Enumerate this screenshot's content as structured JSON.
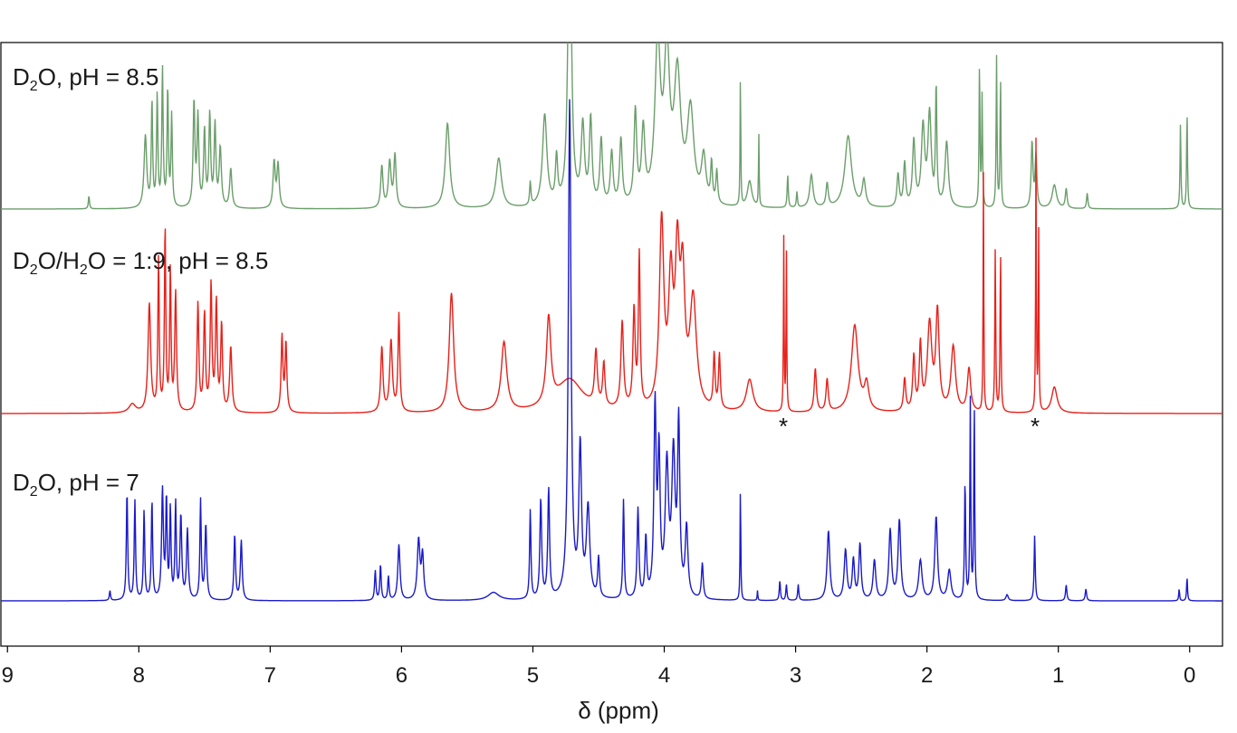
{
  "chart_data": {
    "type": "line",
    "title": "",
    "xlabel": "δ (ppm)",
    "ylabel": "",
    "x_reversed": true,
    "xlim": [
      9.05,
      -0.25
    ],
    "xticks": [
      9,
      8,
      7,
      6,
      5,
      4,
      3,
      2,
      1,
      0
    ],
    "grid": false,
    "series": [
      {
        "name": "D2O, pH = 8.5",
        "label_parts": [
          "D",
          "2",
          "O, pH = 8.5"
        ],
        "color": "#6b9e6b",
        "baseline": 0.0,
        "peaks": [
          [
            8.38,
            0.1,
            0.005
          ],
          [
            7.95,
            0.55,
            0.012
          ],
          [
            7.9,
            0.8,
            0.006
          ],
          [
            7.86,
            0.85,
            0.006
          ],
          [
            7.82,
            1.05,
            0.006
          ],
          [
            7.78,
            0.9,
            0.006
          ],
          [
            7.75,
            0.7,
            0.006
          ],
          [
            7.58,
            0.8,
            0.008
          ],
          [
            7.55,
            0.68,
            0.008
          ],
          [
            7.5,
            0.58,
            0.008
          ],
          [
            7.46,
            0.7,
            0.008
          ],
          [
            7.42,
            0.62,
            0.008
          ],
          [
            7.38,
            0.45,
            0.01
          ],
          [
            7.3,
            0.3,
            0.01
          ],
          [
            6.97,
            0.35,
            0.01
          ],
          [
            6.94,
            0.33,
            0.01
          ],
          [
            6.15,
            0.32,
            0.01
          ],
          [
            6.09,
            0.35,
            0.012
          ],
          [
            6.05,
            0.4,
            0.01
          ],
          [
            5.65,
            0.65,
            0.02
          ],
          [
            5.26,
            0.38,
            0.025
          ],
          [
            5.02,
            0.18,
            0.006
          ],
          [
            4.91,
            0.7,
            0.02
          ],
          [
            4.82,
            0.35,
            0.01
          ],
          [
            4.72,
            2.5,
            0.015
          ],
          [
            4.62,
            0.6,
            0.015
          ],
          [
            4.56,
            0.65,
            0.012
          ],
          [
            4.48,
            0.5,
            0.012
          ],
          [
            4.4,
            0.4,
            0.012
          ],
          [
            4.33,
            0.5,
            0.012
          ],
          [
            4.22,
            0.7,
            0.012
          ],
          [
            4.16,
            0.55,
            0.015
          ],
          [
            4.05,
            1.2,
            0.025
          ],
          [
            3.98,
            1.1,
            0.025
          ],
          [
            3.9,
            0.95,
            0.03
          ],
          [
            3.8,
            0.7,
            0.03
          ],
          [
            3.7,
            0.35,
            0.02
          ],
          [
            3.64,
            0.3,
            0.008
          ],
          [
            3.6,
            0.25,
            0.008
          ],
          [
            3.42,
            1.05,
            0.003
          ],
          [
            3.35,
            0.2,
            0.02
          ],
          [
            3.28,
            0.55,
            0.003
          ],
          [
            3.06,
            0.25,
            0.005
          ],
          [
            2.99,
            0.12,
            0.005
          ],
          [
            2.88,
            0.25,
            0.015
          ],
          [
            2.76,
            0.18,
            0.01
          ],
          [
            2.6,
            0.55,
            0.03
          ],
          [
            2.48,
            0.2,
            0.015
          ],
          [
            2.22,
            0.25,
            0.01
          ],
          [
            2.17,
            0.33,
            0.01
          ],
          [
            2.1,
            0.5,
            0.012
          ],
          [
            2.03,
            0.6,
            0.015
          ],
          [
            1.98,
            0.7,
            0.015
          ],
          [
            1.93,
            0.9,
            0.006
          ],
          [
            1.85,
            0.5,
            0.015
          ],
          [
            1.6,
            1.1,
            0.004
          ],
          [
            1.58,
            0.85,
            0.004
          ],
          [
            1.47,
            1.15,
            0.004
          ],
          [
            1.44,
            1.0,
            0.004
          ],
          [
            1.2,
            0.5,
            0.008
          ],
          [
            1.17,
            0.4,
            0.008
          ],
          [
            1.03,
            0.18,
            0.02
          ],
          [
            0.94,
            0.15,
            0.008
          ],
          [
            0.78,
            0.12,
            0.006
          ],
          [
            0.07,
            0.65,
            0.004
          ],
          [
            0.02,
            0.75,
            0.004
          ]
        ]
      },
      {
        "name": "D2O/H2O = 1:9, pH = 8.5",
        "label_parts": [
          "D",
          "2",
          "O/H",
          "2",
          "O = 1:9, pH = 8.5"
        ],
        "color": "#e8201a",
        "baseline": 0.0,
        "peaks": [
          [
            8.05,
            0.04,
            0.03
          ],
          [
            7.92,
            0.5,
            0.012
          ],
          [
            7.85,
            0.7,
            0.006
          ],
          [
            7.8,
            0.85,
            0.006
          ],
          [
            7.76,
            0.65,
            0.006
          ],
          [
            7.72,
            0.55,
            0.008
          ],
          [
            7.55,
            0.5,
            0.008
          ],
          [
            7.5,
            0.45,
            0.008
          ],
          [
            7.45,
            0.58,
            0.008
          ],
          [
            7.41,
            0.5,
            0.008
          ],
          [
            7.37,
            0.4,
            0.008
          ],
          [
            7.3,
            0.3,
            0.01
          ],
          [
            6.91,
            0.35,
            0.008
          ],
          [
            6.88,
            0.32,
            0.008
          ],
          [
            6.15,
            0.3,
            0.01
          ],
          [
            6.08,
            0.33,
            0.012
          ],
          [
            6.02,
            0.45,
            0.008
          ],
          [
            5.62,
            0.55,
            0.02
          ],
          [
            5.22,
            0.32,
            0.025
          ],
          [
            4.88,
            0.4,
            0.02
          ],
          [
            4.72,
            0.15,
            0.12
          ],
          [
            4.52,
            0.25,
            0.012
          ],
          [
            4.46,
            0.2,
            0.01
          ],
          [
            4.32,
            0.4,
            0.012
          ],
          [
            4.23,
            0.45,
            0.01
          ],
          [
            4.19,
            0.7,
            0.008
          ],
          [
            4.02,
            0.85,
            0.02
          ],
          [
            3.95,
            0.55,
            0.02
          ],
          [
            3.9,
            0.65,
            0.02
          ],
          [
            3.86,
            0.55,
            0.02
          ],
          [
            3.78,
            0.5,
            0.03
          ],
          [
            3.62,
            0.25,
            0.008
          ],
          [
            3.58,
            0.25,
            0.008
          ],
          [
            3.35,
            0.15,
            0.03
          ],
          [
            3.09,
            0.8,
            0.003
          ],
          [
            3.07,
            0.75,
            0.003
          ],
          [
            2.85,
            0.2,
            0.01
          ],
          [
            2.76,
            0.15,
            0.01
          ],
          [
            2.55,
            0.4,
            0.03
          ],
          [
            2.46,
            0.12,
            0.02
          ],
          [
            2.17,
            0.15,
            0.01
          ],
          [
            2.1,
            0.25,
            0.01
          ],
          [
            2.05,
            0.3,
            0.01
          ],
          [
            1.98,
            0.4,
            0.02
          ],
          [
            1.92,
            0.45,
            0.015
          ],
          [
            1.8,
            0.3,
            0.02
          ],
          [
            1.68,
            0.2,
            0.015
          ],
          [
            1.57,
            1.1,
            0.003
          ],
          [
            1.48,
            0.75,
            0.004
          ],
          [
            1.44,
            0.75,
            0.004
          ],
          [
            1.17,
            1.25,
            0.003
          ],
          [
            1.15,
            0.85,
            0.003
          ],
          [
            1.03,
            0.12,
            0.025
          ]
        ]
      },
      {
        "name": "D2O, pH = 7",
        "label_parts": [
          "D",
          "2",
          "O, pH = 7"
        ],
        "color": "#1a1acc",
        "baseline": 0.0,
        "peaks": [
          [
            8.22,
            0.05,
            0.005
          ],
          [
            8.09,
            0.55,
            0.006
          ],
          [
            8.03,
            0.5,
            0.006
          ],
          [
            7.96,
            0.45,
            0.006
          ],
          [
            7.9,
            0.5,
            0.006
          ],
          [
            7.82,
            0.55,
            0.008
          ],
          [
            7.79,
            0.5,
            0.006
          ],
          [
            7.76,
            0.45,
            0.006
          ],
          [
            7.72,
            0.48,
            0.006
          ],
          [
            7.68,
            0.42,
            0.008
          ],
          [
            7.63,
            0.35,
            0.008
          ],
          [
            7.53,
            0.5,
            0.006
          ],
          [
            7.49,
            0.38,
            0.008
          ],
          [
            7.27,
            0.33,
            0.007
          ],
          [
            7.22,
            0.3,
            0.008
          ],
          [
            6.2,
            0.15,
            0.006
          ],
          [
            6.16,
            0.18,
            0.006
          ],
          [
            6.1,
            0.12,
            0.006
          ],
          [
            6.02,
            0.28,
            0.01
          ],
          [
            5.87,
            0.3,
            0.012
          ],
          [
            5.84,
            0.22,
            0.01
          ],
          [
            5.3,
            0.04,
            0.05
          ],
          [
            5.02,
            0.45,
            0.006
          ],
          [
            4.94,
            0.5,
            0.008
          ],
          [
            4.88,
            0.55,
            0.008
          ],
          [
            4.72,
            2.5,
            0.012
          ],
          [
            4.64,
            0.75,
            0.012
          ],
          [
            4.58,
            0.45,
            0.015
          ],
          [
            4.5,
            0.2,
            0.008
          ],
          [
            4.31,
            0.5,
            0.006
          ],
          [
            4.2,
            0.45,
            0.008
          ],
          [
            4.14,
            0.3,
            0.008
          ],
          [
            4.07,
            0.95,
            0.01
          ],
          [
            4.04,
            0.7,
            0.01
          ],
          [
            3.98,
            0.65,
            0.015
          ],
          [
            3.93,
            0.7,
            0.015
          ],
          [
            3.89,
            0.85,
            0.01
          ],
          [
            3.83,
            0.35,
            0.012
          ],
          [
            3.71,
            0.18,
            0.008
          ],
          [
            3.42,
            0.6,
            0.003
          ],
          [
            3.29,
            0.05,
            0.003
          ],
          [
            3.12,
            0.1,
            0.005
          ],
          [
            3.07,
            0.08,
            0.005
          ],
          [
            2.98,
            0.08,
            0.005
          ],
          [
            2.75,
            0.35,
            0.012
          ],
          [
            2.62,
            0.25,
            0.012
          ],
          [
            2.56,
            0.2,
            0.01
          ],
          [
            2.51,
            0.28,
            0.01
          ],
          [
            2.4,
            0.2,
            0.012
          ],
          [
            2.28,
            0.35,
            0.012
          ],
          [
            2.21,
            0.4,
            0.012
          ],
          [
            2.05,
            0.2,
            0.015
          ],
          [
            1.93,
            0.42,
            0.012
          ],
          [
            1.83,
            0.15,
            0.015
          ],
          [
            1.71,
            0.6,
            0.005
          ],
          [
            1.67,
            1.0,
            0.004
          ],
          [
            1.64,
            1.0,
            0.004
          ],
          [
            1.39,
            0.03,
            0.01
          ],
          [
            1.18,
            0.33,
            0.005
          ],
          [
            0.94,
            0.08,
            0.006
          ],
          [
            0.79,
            0.06,
            0.006
          ],
          [
            0.08,
            0.06,
            0.004
          ],
          [
            0.02,
            0.12,
            0.004
          ]
        ]
      }
    ],
    "annotations": [
      {
        "text": "*",
        "x": 3.09,
        "series": "D2O/H2O = 1:9, pH = 8.5"
      },
      {
        "text": "*",
        "x": 1.16,
        "series": "D2O/H2O = 1:9, pH = 8.5"
      }
    ]
  }
}
